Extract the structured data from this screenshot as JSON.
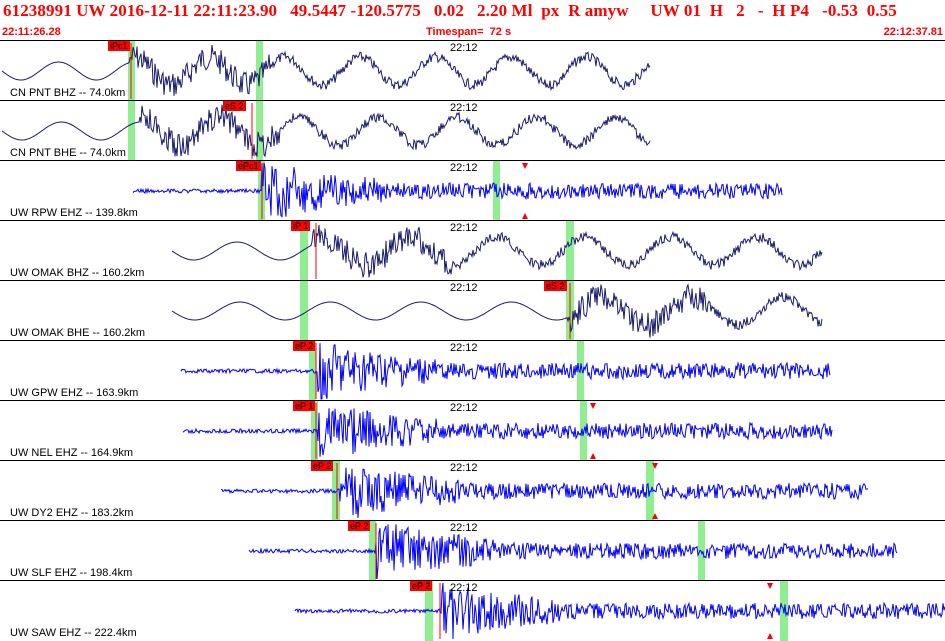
{
  "header": {
    "title": "61238991 UW 2016-12-11 22:11:23.90   49.5447 -120.5775   0.02   2.20 Ml  px  R amyw     UW 01  H   2   -  H P4   -0.53  0.55",
    "start_time": "22:11:26.28",
    "timespan": "Timespan=  72 s",
    "end_time": "22:12:37.81"
  },
  "colors": {
    "header_text": "#ff0000",
    "broadband": "#1a1a6e",
    "short_period": "#0000ff",
    "pick": "#ff0000",
    "window": "#90ee90"
  },
  "traces": [
    {
      "label": "CN PNT BHZ -- 74.0km",
      "time": "22:12",
      "kind": "broadband",
      "pick": "iPc1",
      "has_triangles": false
    },
    {
      "label": "CN PNT BHE -- 74.0km",
      "time": "22:12",
      "kind": "broadband",
      "pick": "eS 2",
      "has_triangles": false
    },
    {
      "label": "UW RPW EHZ -- 139.8km",
      "time": "22:12",
      "kind": "short_period",
      "pick": "ePc1",
      "has_triangles": true
    },
    {
      "label": "UW OMAK BHZ -- 160.2km",
      "time": "22:12",
      "kind": "broadband",
      "pick": "iP 1",
      "has_triangles": false
    },
    {
      "label": "UW OMAK BHE -- 160.2km",
      "time": "22:12",
      "kind": "broadband",
      "pick": "eS 2",
      "has_triangles": false
    },
    {
      "label": "UW GPW EHZ -- 163.9km",
      "time": "22:12",
      "kind": "short_period",
      "pick": "eP 2",
      "has_triangles": false
    },
    {
      "label": "UW NEL EHZ -- 164.9km",
      "time": "22:12",
      "kind": "short_period",
      "pick": "eP 1",
      "has_triangles": true
    },
    {
      "label": "UW DY2 EHZ -- 183.2km",
      "time": "22:12",
      "kind": "short_period",
      "pick": "eP 2",
      "has_triangles": true
    },
    {
      "label": "UW SLF EHZ -- 198.4km",
      "time": "22:12",
      "kind": "short_period",
      "pick": "eP 2",
      "has_triangles": false
    },
    {
      "label": "UW SAW EHZ -- 222.4km",
      "time": "22:12",
      "kind": "short_period",
      "pick": "eP 2",
      "has_triangles": true
    }
  ]
}
